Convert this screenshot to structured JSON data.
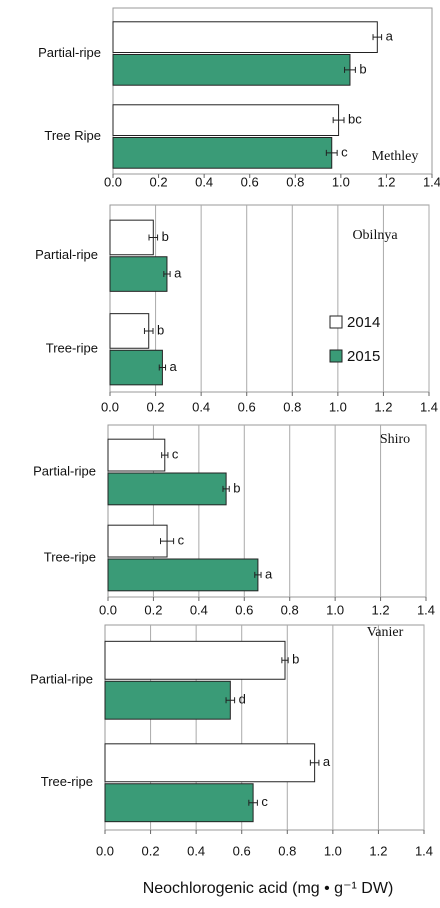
{
  "chart_data": [
    {
      "type": "barh",
      "title": "Methley",
      "categories": [
        "Partial-ripe",
        "Tree Ripe"
      ],
      "series": [
        {
          "name": "2014",
          "color": "#ffffff",
          "values": [
            1.16,
            0.99
          ],
          "errors": [
            0.01,
            0.015
          ],
          "letters": [
            "a",
            "bc"
          ]
        },
        {
          "name": "2015",
          "color": "#3a9b77",
          "values": [
            1.04,
            0.96
          ],
          "errors": [
            0.015,
            0.015
          ],
          "letters": [
            "b",
            "c"
          ]
        }
      ],
      "xlim": [
        0,
        1.4
      ],
      "xticks": [
        {
          "value": 0,
          "label": "0.0"
        },
        {
          "value": 0.2,
          "label": "0.2"
        },
        {
          "value": 0.4,
          "label": "0.4"
        },
        {
          "value": 0.6,
          "label": "0.6"
        },
        {
          "value": 0.8,
          "label": "0.8"
        },
        {
          "value": 1,
          "label": "1.0"
        },
        {
          "value": 1.2,
          "label": "1.2"
        },
        {
          "value": 1.4,
          "label": "1.4"
        }
      ],
      "grid": false
    },
    {
      "type": "barh",
      "title": "Obilnya",
      "categories": [
        "Partial-ripe",
        "Tree-ripe"
      ],
      "series": [
        {
          "name": "2014",
          "color": "#ffffff",
          "values": [
            0.19,
            0.17
          ],
          "errors": [
            0.01,
            0.01
          ],
          "letters": [
            "b",
            "b"
          ]
        },
        {
          "name": "2015",
          "color": "#3a9b77",
          "values": [
            0.25,
            0.23
          ],
          "errors": [
            0.005,
            0.005
          ],
          "letters": [
            "a",
            "a"
          ]
        }
      ],
      "xlim": [
        0,
        1.4
      ],
      "xticks": [
        {
          "value": 0,
          "label": "0.0"
        },
        {
          "value": 0.2,
          "label": "0.2"
        },
        {
          "value": 0.4,
          "label": "0.4"
        },
        {
          "value": 0.6,
          "label": "0.6"
        },
        {
          "value": 0.8,
          "label": "0.8"
        },
        {
          "value": 1,
          "label": "1.0"
        },
        {
          "value": 1.2,
          "label": "1.2"
        },
        {
          "value": 1.4,
          "label": "1.4"
        }
      ],
      "grid": true,
      "legend": "right"
    },
    {
      "type": "barh",
      "title": "Shiro",
      "categories": [
        "Partial-ripe",
        "Tree-ripe"
      ],
      "series": [
        {
          "name": "2014",
          "color": "#ffffff",
          "values": [
            0.25,
            0.26
          ],
          "errors": [
            0.005,
            0.02
          ],
          "letters": [
            "c",
            "c"
          ]
        },
        {
          "name": "2015",
          "color": "#3a9b77",
          "values": [
            0.52,
            0.66
          ],
          "errors": [
            0.005,
            0.005
          ],
          "letters": [
            "b",
            "a"
          ]
        }
      ],
      "xlim": [
        0,
        1.4
      ],
      "xticks": [
        {
          "value": 0,
          "label": "0.0"
        },
        {
          "value": 0.2,
          "label": "0.2"
        },
        {
          "value": 0.4,
          "label": "0.4"
        },
        {
          "value": 0.6,
          "label": "0.6"
        },
        {
          "value": 0.8,
          "label": "0.8"
        },
        {
          "value": 1,
          "label": "1.0"
        },
        {
          "value": 1.2,
          "label": "1.2"
        },
        {
          "value": 1.4,
          "label": "1.4"
        }
      ],
      "grid": true
    },
    {
      "type": "barh",
      "title": "Vanier",
      "categories": [
        "Partial-ripe",
        "Tree-ripe"
      ],
      "series": [
        {
          "name": "2014",
          "color": "#ffffff",
          "values": [
            0.79,
            0.92
          ],
          "errors": [
            0.005,
            0.01
          ],
          "letters": [
            "b",
            "a"
          ]
        },
        {
          "name": "2015",
          "color": "#3a9b77",
          "values": [
            0.55,
            0.65
          ],
          "errors": [
            0.01,
            0.01
          ],
          "letters": [
            "d",
            "c"
          ]
        }
      ],
      "xlim": [
        0,
        1.4
      ],
      "xticks": [
        {
          "value": 0,
          "label": "0.0"
        },
        {
          "value": 0.2,
          "label": "0.2"
        },
        {
          "value": 0.4,
          "label": "0.4"
        },
        {
          "value": 0.6,
          "label": "0.6"
        },
        {
          "value": 0.8,
          "label": "0.8"
        },
        {
          "value": 1,
          "label": "1.0"
        },
        {
          "value": 1.2,
          "label": "1.2"
        },
        {
          "value": 1.4,
          "label": "1.4"
        }
      ],
      "grid": true,
      "xlabel": "Neochlorogenic acid (mg • g⁻¹ DW)"
    }
  ]
}
